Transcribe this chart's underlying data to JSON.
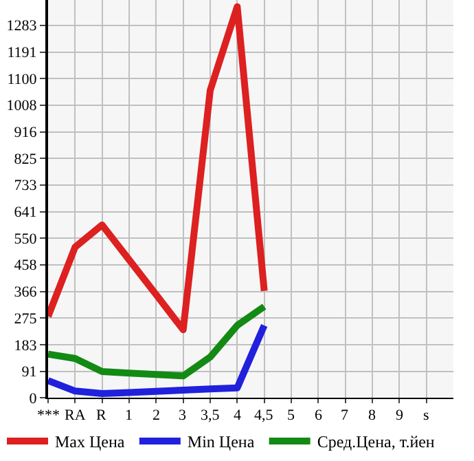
{
  "chart_data": {
    "type": "line",
    "categories": [
      "***",
      "RA",
      "R",
      "1",
      "2",
      "3",
      "3,5",
      "4",
      "4,5",
      "5",
      "6",
      "7",
      "8",
      "9",
      "s"
    ],
    "series": [
      {
        "name": "Max Цена",
        "color": "#dd2020",
        "values": [
          280,
          519,
          595,
          475,
          355,
          234,
          1059,
          1347,
          368,
          null,
          null,
          null,
          null,
          null,
          null
        ]
      },
      {
        "name": "Min Цена",
        "color": "#2020dd",
        "values": [
          59,
          23,
          14,
          18,
          22,
          26,
          30,
          34,
          249,
          null,
          null,
          null,
          null,
          null,
          null
        ]
      },
      {
        "name": "Сред.Цена, т.йен",
        "color": "#138a13",
        "values": [
          150,
          135,
          90,
          85,
          80,
          75,
          140,
          249,
          314,
          null,
          null,
          null,
          null,
          null,
          null
        ]
      }
    ],
    "ylim": [
      0,
      1370
    ],
    "yticks": [
      0,
      91,
      183,
      275,
      366,
      458,
      550,
      641,
      733,
      825,
      916,
      1008,
      1100,
      1191,
      1283
    ],
    "grid": true,
    "legend": "bottom",
    "marker": "none",
    "line_style": "solid"
  }
}
